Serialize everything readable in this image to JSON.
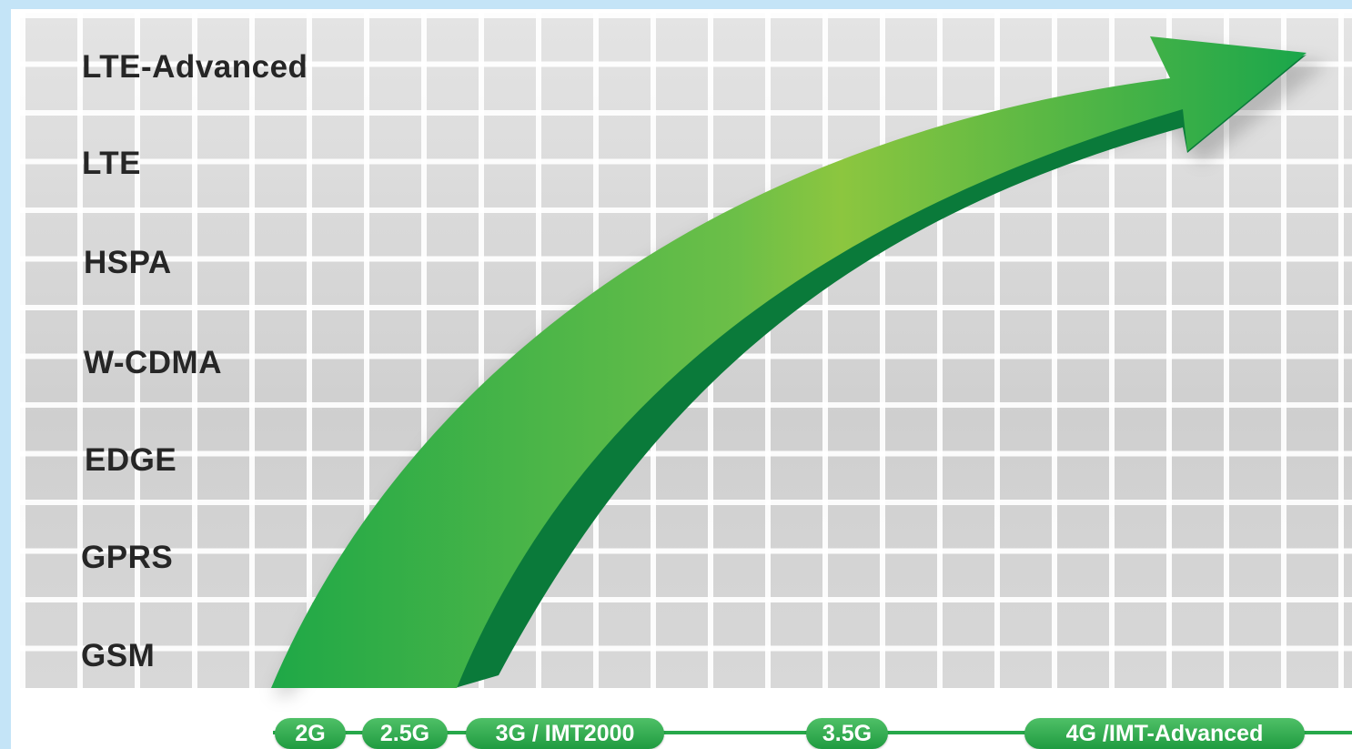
{
  "technologies": {
    "lte_advanced": "LTE-Advanced",
    "lte": "LTE",
    "hspa": "HSPA",
    "wcdma": "W-CDMA",
    "edge": "EDGE",
    "gprs": "GPRS",
    "gsm": "GSM"
  },
  "generations": {
    "g2": "2G",
    "g2_5": "2.5G",
    "g3": "3G / IMT2000",
    "g3_5": "3.5G",
    "g4": "4G /IMT-Advanced"
  },
  "colors": {
    "arrow_light": "#8cc63f",
    "arrow_mid": "#39b54a",
    "arrow_dark": "#0a7a3a",
    "pill": "#27a84a",
    "grid_bg": "#cfcfcf",
    "frame": "#c4e4f7"
  }
}
